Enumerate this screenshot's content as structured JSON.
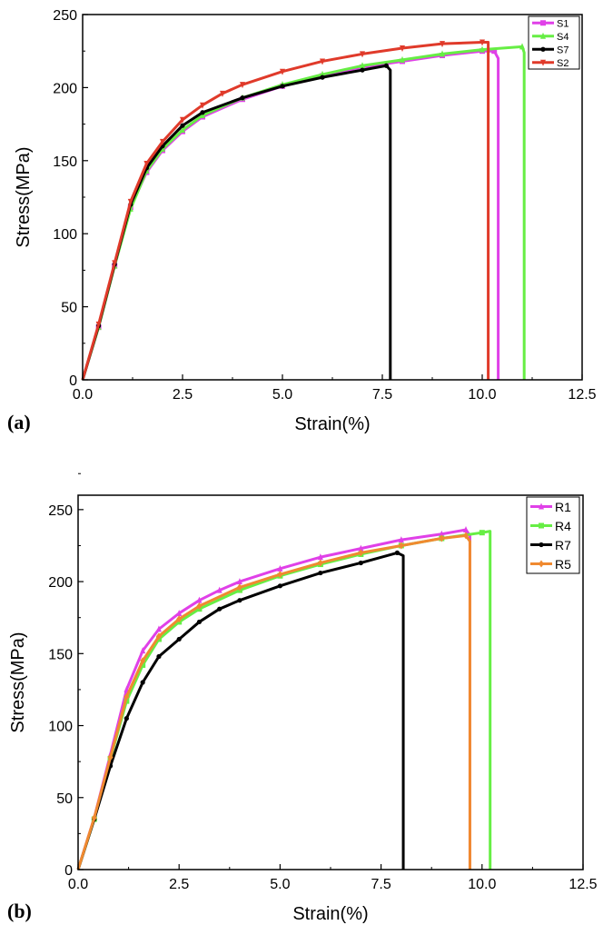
{
  "chart_data": [
    {
      "type": "line",
      "panel_label": "(a)",
      "xlabel": "Strain(%)",
      "ylabel": "Stress(MPa)",
      "xlim": [
        0,
        12.5
      ],
      "ylim": [
        0,
        250
      ],
      "xticks": [
        "0.0",
        "2.5",
        "5.0",
        "7.5",
        "10.0",
        "12.5"
      ],
      "yticks": [
        "0",
        "50",
        "100",
        "150",
        "200",
        "250"
      ],
      "legend_position": "top-right",
      "series": [
        {
          "name": "S1",
          "color": "#e040e8",
          "marker": "square",
          "x": [
            0,
            0.4,
            0.8,
            1.2,
            1.6,
            2,
            2.5,
            3,
            4,
            5,
            6,
            7,
            8,
            9,
            10,
            10.3,
            10.4,
            10.4
          ],
          "y": [
            0,
            36,
            78,
            118,
            142,
            157,
            170,
            180,
            192,
            201,
            208,
            214,
            218,
            222,
            225,
            225,
            220,
            0
          ]
        },
        {
          "name": "S4",
          "color": "#66ee44",
          "marker": "triangle",
          "x": [
            0,
            0.4,
            0.8,
            1.2,
            1.6,
            2,
            2.5,
            3,
            4,
            5,
            6,
            7,
            8,
            9,
            10,
            11,
            11.05,
            11.05
          ],
          "y": [
            0,
            36,
            78,
            117,
            143,
            158,
            171,
            181,
            193,
            202,
            209,
            215,
            219,
            223,
            226,
            228,
            224,
            0
          ]
        },
        {
          "name": "S7",
          "color": "#000000",
          "marker": "circle",
          "x": [
            0,
            0.4,
            0.8,
            1.2,
            1.6,
            2,
            2.5,
            3,
            4,
            5,
            6,
            7,
            7.6,
            7.7,
            7.7
          ],
          "y": [
            0,
            37,
            79,
            120,
            145,
            160,
            174,
            183,
            193,
            201,
            207,
            212,
            215,
            212,
            0
          ]
        },
        {
          "name": "S2",
          "color": "#e03a2a",
          "marker": "triangle-down",
          "x": [
            0,
            0.4,
            0.8,
            1.2,
            1.6,
            2,
            2.5,
            3,
            3.5,
            4,
            5,
            6,
            7,
            8,
            9,
            10,
            10.15,
            10.15
          ],
          "y": [
            0,
            38,
            80,
            122,
            148,
            163,
            178,
            188,
            196,
            202,
            211,
            218,
            223,
            227,
            230,
            231,
            231,
            0
          ]
        }
      ]
    },
    {
      "type": "line",
      "panel_label": "(b)",
      "xlabel": "Strain(%)",
      "ylabel": "Stress(MPa)",
      "xlim": [
        0,
        12.5
      ],
      "ylim": [
        0,
        250
      ],
      "xticks": [
        "0.0",
        "2.5",
        "5.0",
        "7.5",
        "10.0",
        "12.5"
      ],
      "yticks": [
        "0",
        "50",
        "100",
        "150",
        "200",
        "250"
      ],
      "legend_position": "top-right",
      "series": [
        {
          "name": "R1",
          "color": "#e040e8",
          "marker": "triangle",
          "x": [
            0,
            0.4,
            0.8,
            1.2,
            1.6,
            2,
            2.5,
            3,
            3.5,
            4,
            5,
            6,
            7,
            8,
            9,
            9.6,
            9.7,
            9.7
          ],
          "y": [
            0,
            36,
            80,
            125,
            152,
            167,
            178,
            187,
            194,
            200,
            209,
            217,
            223,
            229,
            233,
            236,
            232,
            0
          ]
        },
        {
          "name": "R4",
          "color": "#66ee44",
          "marker": "square",
          "x": [
            0,
            0.4,
            0.8,
            1.2,
            1.6,
            2,
            2.5,
            3,
            4,
            5,
            6,
            7,
            8,
            9,
            10,
            10.2,
            10.2
          ],
          "y": [
            0,
            35,
            77,
            117,
            142,
            160,
            172,
            181,
            194,
            204,
            212,
            219,
            225,
            230,
            234,
            235,
            0
          ]
        },
        {
          "name": "R7",
          "color": "#000000",
          "marker": "circle",
          "x": [
            0,
            0.4,
            0.8,
            1.2,
            1.6,
            2,
            2.5,
            3,
            3.5,
            4,
            5,
            6,
            7,
            7.9,
            8.05,
            8.05
          ],
          "y": [
            0,
            35,
            72,
            105,
            130,
            148,
            160,
            172,
            181,
            187,
            197,
            206,
            213,
            220,
            218,
            0
          ]
        },
        {
          "name": "R5",
          "color": "#f08a30",
          "marker": "diamond",
          "x": [
            0,
            0.4,
            0.8,
            1.2,
            1.6,
            2,
            2.5,
            3,
            4,
            5,
            6,
            7,
            8,
            9,
            9.6,
            9.7,
            9.7
          ],
          "y": [
            0,
            36,
            78,
            120,
            145,
            162,
            174,
            183,
            196,
            205,
            213,
            220,
            225,
            230,
            232,
            228,
            0
          ]
        }
      ]
    }
  ]
}
